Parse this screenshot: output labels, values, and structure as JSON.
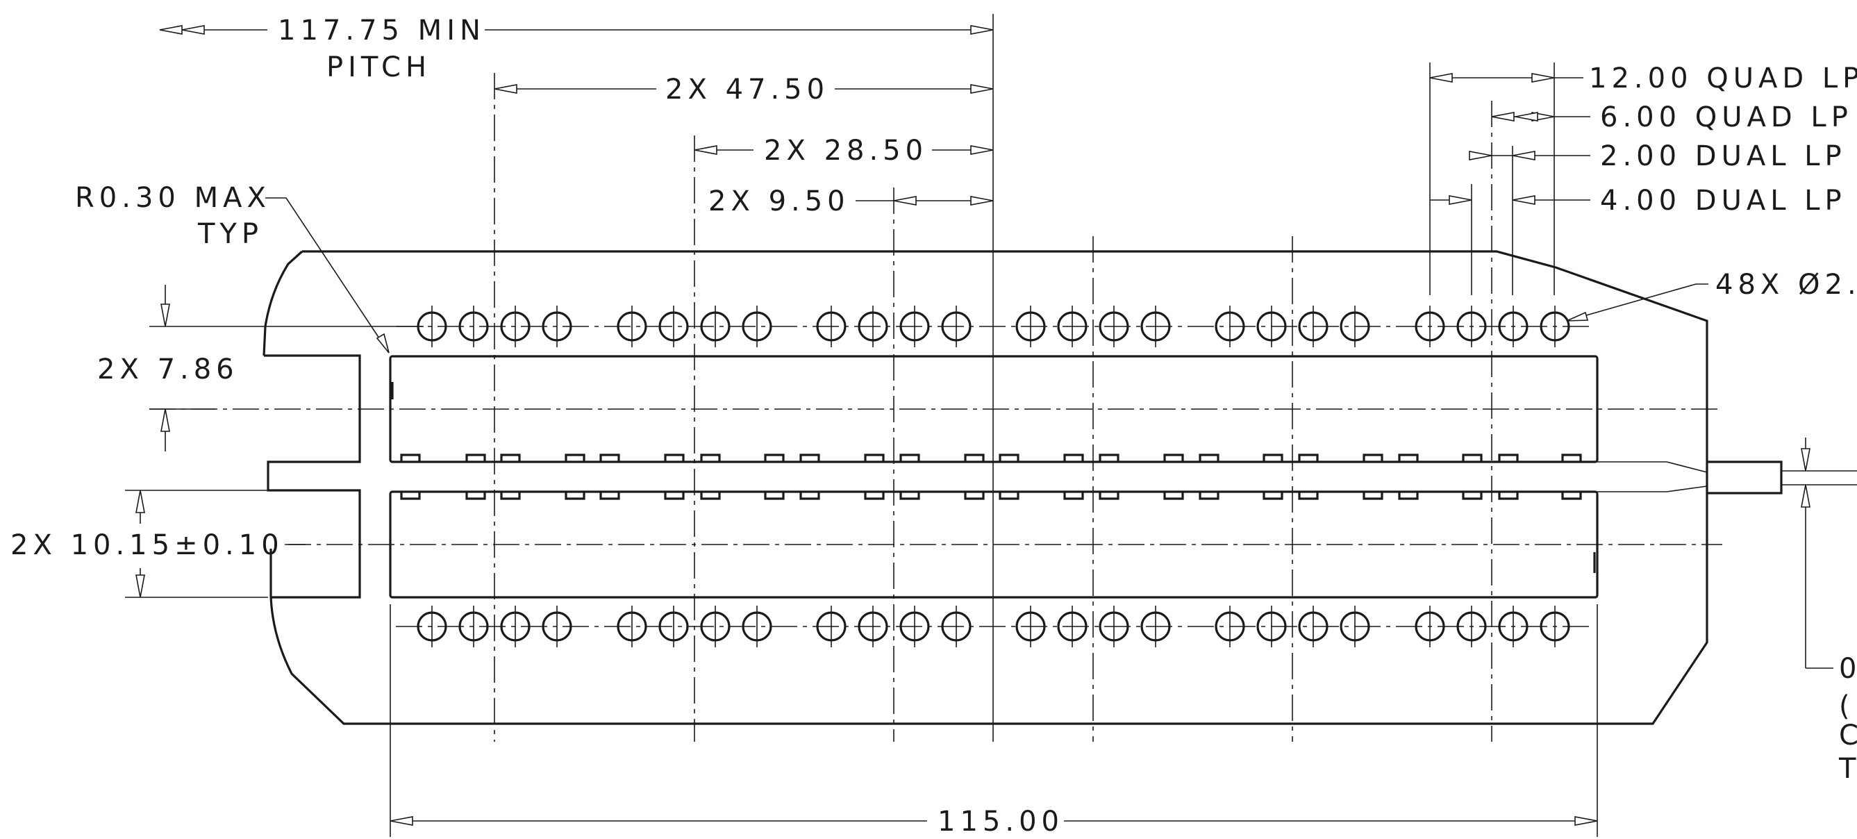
{
  "dimensions": {
    "pitch_min": "117.75 MIN",
    "pitch_word": "PITCH",
    "d_47_50": "2X 47.50",
    "d_28_50": "2X 28.50",
    "d_9_50": "2X 9.50",
    "radius": "R0.30 MAX",
    "radius_typ": "TYP",
    "d_7_86": "2X 7.86",
    "d_10_15": "2X 10.15±0.10",
    "d_115": "115.00",
    "quad_12": "12.00 QUAD LP",
    "quad_6": "6.00 QUAD LP",
    "dual_2": "2.00 DUAL LP",
    "dual_4": "4.00 DUAL LP",
    "holes": "48X Ø2.",
    "right_0": "0",
    "right_paren": "(",
    "right_c": "C",
    "right_t": "T"
  }
}
